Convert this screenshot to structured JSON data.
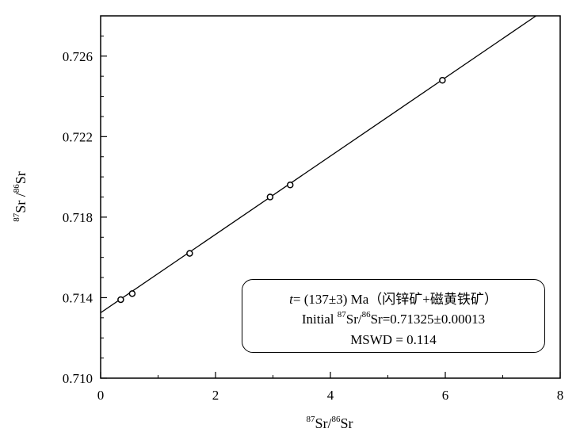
{
  "chart_data": {
    "type": "scatter",
    "x": [
      0.35,
      0.55,
      1.55,
      2.95,
      3.3,
      5.95
    ],
    "y": [
      0.7139,
      0.7142,
      0.7162,
      0.719,
      0.7196,
      0.7248
    ],
    "regression_line": {
      "intercept": 0.71325,
      "slope": 0.001946
    },
    "xlim": [
      0,
      8
    ],
    "ylim": [
      0.71,
      0.728
    ],
    "x_ticks": [
      "0",
      "2",
      "4",
      "6",
      "8"
    ],
    "y_ticks": [
      "0.710",
      "0.714",
      "0.718",
      "0.722",
      "0.726"
    ],
    "xlabel": {
      "sup1": "87",
      "a": "Sr/",
      "sup2": "86",
      "b": "Sr"
    },
    "ylabel": {
      "sup1": "87",
      "a": "Sr /",
      "sup2": "86",
      "b": "Sr"
    },
    "annotation": {
      "line1": {
        "t": "t",
        "rest": "= (137±3) Ma（闪锌矿+磁黄铁矿）"
      },
      "line2": {
        "a": "Initial ",
        "sup1": "87",
        "b": "Sr/",
        "sup2": "86",
        "c": "Sr=0.71325±0.00013"
      },
      "line3": "MSWD = 0.114"
    },
    "grid": false,
    "legend": "bottom-right"
  }
}
